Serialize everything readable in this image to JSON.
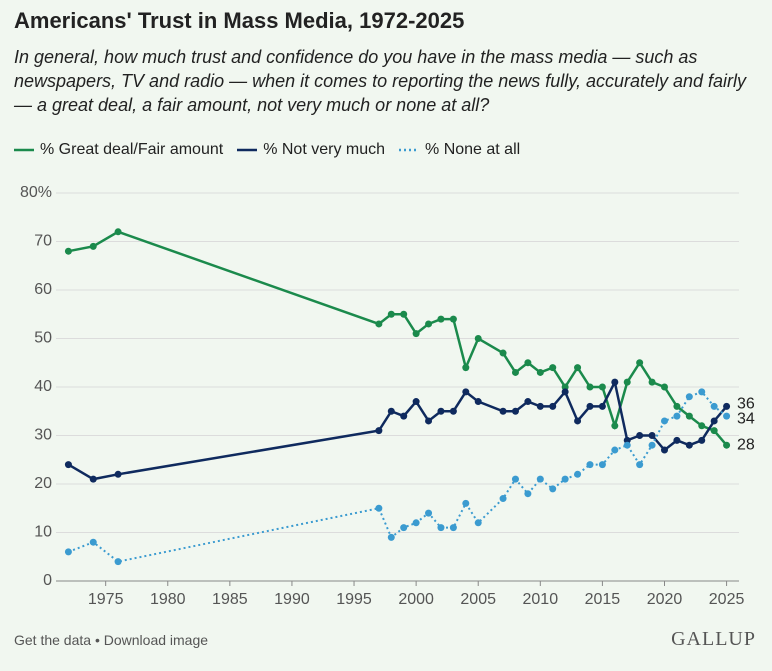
{
  "chart_data": {
    "type": "line",
    "title": "Americans' Trust in Mass Media, 1972-2025",
    "subtitle": "In general, how much trust and confidence do you have in the mass media — such as newspapers, TV and radio — when it comes to reporting the news fully, accurately and fairly — a great deal, a fair amount, not very much or none at all?",
    "x": [
      1972,
      1974,
      1976,
      1997,
      1998,
      1999,
      2000,
      2001,
      2002,
      2003,
      2004,
      2005,
      2007,
      2008,
      2009,
      2010,
      2011,
      2012,
      2013,
      2014,
      2015,
      2016,
      2017,
      2018,
      2019,
      2020,
      2021,
      2022,
      2023,
      2024,
      2025
    ],
    "series": [
      {
        "name": "% Great deal/Fair amount",
        "color": "#1b8a4c",
        "line_style": "solid",
        "values": [
          68,
          69,
          72,
          53,
          55,
          55,
          51,
          53,
          54,
          54,
          44,
          50,
          47,
          43,
          45,
          43,
          44,
          40,
          44,
          40,
          40,
          32,
          41,
          45,
          41,
          40,
          36,
          34,
          32,
          31,
          28
        ]
      },
      {
        "name": "% Not very much",
        "color": "#0f2a5e",
        "line_style": "solid",
        "values": [
          24,
          21,
          22,
          31,
          35,
          34,
          37,
          33,
          35,
          35,
          39,
          37,
          35,
          35,
          37,
          36,
          36,
          39,
          33,
          36,
          36,
          41,
          29,
          30,
          30,
          27,
          29,
          28,
          29,
          33,
          36
        ]
      },
      {
        "name": "% None at all",
        "color": "#3b9bd0",
        "line_style": "dotted",
        "values": [
          6,
          8,
          4,
          15,
          9,
          11,
          12,
          14,
          11,
          11,
          16,
          12,
          17,
          21,
          18,
          21,
          19,
          21,
          22,
          24,
          24,
          27,
          28,
          24,
          28,
          33,
          34,
          38,
          39,
          36,
          34
        ]
      }
    ],
    "xlim": [
      1971,
      2026
    ],
    "xticks": [
      1975,
      1980,
      1985,
      1990,
      1995,
      2000,
      2005,
      2010,
      2015,
      2020,
      2025
    ],
    "ylim": [
      0,
      80
    ],
    "yticks": [
      0,
      10,
      20,
      30,
      40,
      50,
      60,
      70,
      {
        "value": 80,
        "label": "80%"
      }
    ],
    "grid": true,
    "legend": "top-left",
    "end_labels": true
  },
  "footer": {
    "links": [
      "Get the data",
      "Download image"
    ],
    "brand": "GALLUP"
  }
}
